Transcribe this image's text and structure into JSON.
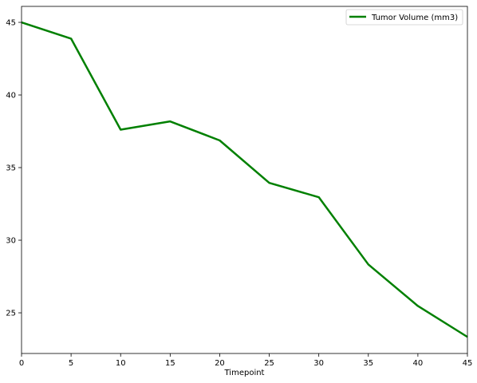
{
  "chart_data": {
    "type": "line",
    "title": "",
    "xlabel": "Timepoint",
    "ylabel": "",
    "x": [
      0,
      5,
      10,
      15,
      20,
      25,
      30,
      35,
      40,
      45
    ],
    "series": [
      {
        "name": "Tumor Volume (mm3)",
        "color": "#008000",
        "values": [
          45.0,
          43.88,
          37.61,
          38.18,
          36.87,
          33.95,
          32.96,
          28.33,
          25.47,
          23.34
        ]
      }
    ],
    "xlim": [
      0,
      45
    ],
    "ylim": [
      22.2,
      46.1
    ],
    "xticks": [
      0,
      5,
      10,
      15,
      20,
      25,
      30,
      35,
      40,
      45
    ],
    "yticks": [
      25,
      30,
      35,
      40,
      45
    ],
    "grid": false,
    "legend": "top-right"
  }
}
